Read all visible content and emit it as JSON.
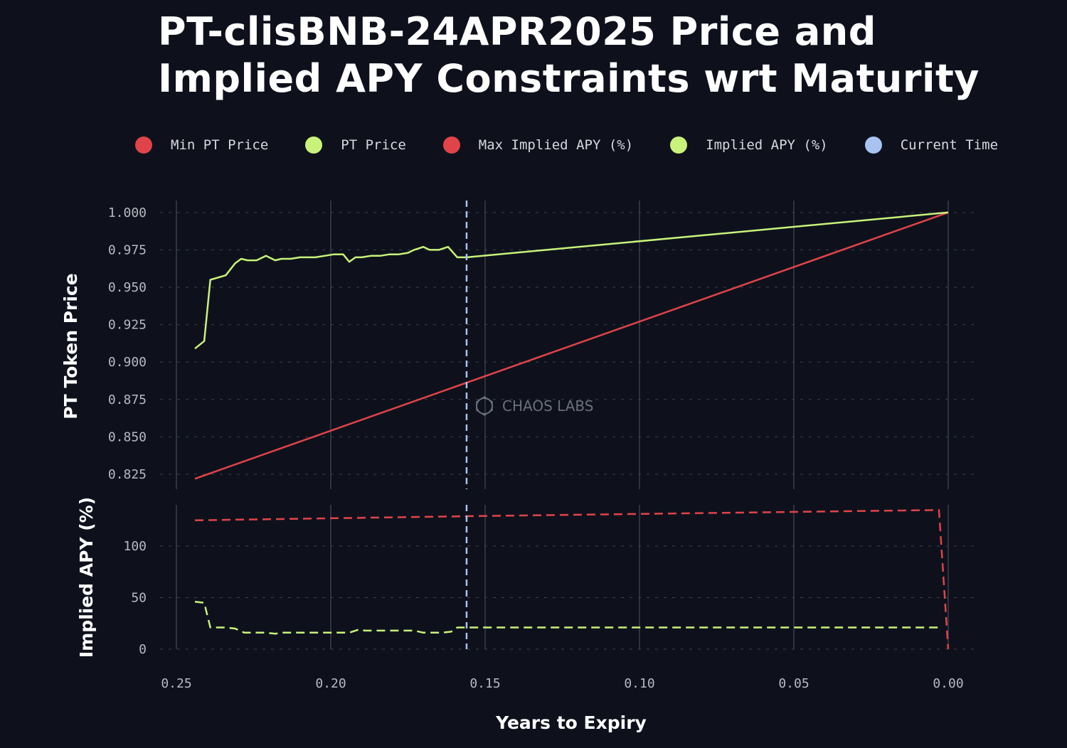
{
  "chart_data": [
    {
      "type": "line",
      "title": "PT-clisBNB-24APR2025 Price and Implied APY Constraints wrt Maturity",
      "xlabel": "Years to Expiry",
      "ylabel": "PT Token Price",
      "xlim": [
        0.25,
        0.0
      ],
      "ylim": [
        0.815,
        1.008
      ],
      "x_ticks": [
        0.25,
        0.2,
        0.15,
        0.1,
        0.05,
        0.0
      ],
      "y_ticks": [
        0.825,
        0.85,
        0.875,
        0.9,
        0.925,
        0.95,
        0.975,
        1.0
      ],
      "x_tick_labels": [
        "0.25",
        "0.20",
        "0.15",
        "0.10",
        "0.05",
        "0.00"
      ],
      "y_tick_labels": [
        "0.825",
        "0.850",
        "0.875",
        "0.900",
        "0.925",
        "0.950",
        "0.975",
        "1.000"
      ],
      "current_time": 0.156,
      "series": [
        {
          "name": "Min PT Price",
          "color": "#e0444a",
          "style": "solid",
          "x": [
            0.244,
            0.0
          ],
          "y": [
            0.822,
            1.0
          ]
        },
        {
          "name": "PT Price",
          "color": "#c9f27a",
          "style": "solid",
          "x": [
            0.244,
            0.241,
            0.239,
            0.234,
            0.231,
            0.229,
            0.227,
            0.224,
            0.221,
            0.218,
            0.216,
            0.213,
            0.21,
            0.207,
            0.205,
            0.202,
            0.199,
            0.196,
            0.194,
            0.192,
            0.19,
            0.187,
            0.184,
            0.181,
            0.178,
            0.175,
            0.173,
            0.17,
            0.168,
            0.165,
            0.162,
            0.159,
            0.156,
            0.0
          ],
          "y": [
            0.909,
            0.914,
            0.955,
            0.958,
            0.966,
            0.969,
            0.968,
            0.968,
            0.971,
            0.968,
            0.969,
            0.969,
            0.97,
            0.97,
            0.97,
            0.971,
            0.972,
            0.972,
            0.967,
            0.97,
            0.97,
            0.971,
            0.971,
            0.972,
            0.972,
            0.973,
            0.975,
            0.977,
            0.975,
            0.975,
            0.977,
            0.97,
            0.97,
            1.0
          ]
        }
      ]
    },
    {
      "type": "line",
      "ylabel": "Implied APY (%)",
      "xlim": [
        0.25,
        0.0
      ],
      "ylim": [
        -6,
        148
      ],
      "y_ticks": [
        0,
        50,
        100
      ],
      "y_tick_labels": [
        "0",
        "50",
        "100"
      ],
      "series": [
        {
          "name": "Max Implied APY (%)",
          "color": "#e0444a",
          "style": "dashed",
          "x": [
            0.244,
            0.156,
            0.003,
            0.0
          ],
          "y": [
            125,
            129,
            135,
            0
          ]
        },
        {
          "name": "Implied APY (%)",
          "color": "#c9f27a",
          "style": "dashed",
          "x": [
            0.244,
            0.241,
            0.239,
            0.234,
            0.231,
            0.228,
            0.225,
            0.221,
            0.218,
            0.216,
            0.212,
            0.208,
            0.205,
            0.201,
            0.198,
            0.194,
            0.191,
            0.189,
            0.186,
            0.183,
            0.18,
            0.176,
            0.173,
            0.17,
            0.167,
            0.164,
            0.161,
            0.159,
            0.156,
            0.003
          ],
          "y": [
            46,
            45,
            21,
            21,
            20,
            16,
            16,
            16,
            15,
            16,
            16,
            16,
            16,
            16,
            16,
            16,
            19,
            18,
            18,
            18,
            18,
            18,
            18,
            16,
            16,
            16,
            17,
            21,
            21,
            21
          ]
        }
      ]
    }
  ],
  "legend": [
    {
      "label": "Min PT Price",
      "color": "#e0444a"
    },
    {
      "label": "PT Price",
      "color": "#c9f27a"
    },
    {
      "label": "Max Implied APY (%)",
      "color": "#e0444a"
    },
    {
      "label": "Implied APY (%)",
      "color": "#c9f27a"
    },
    {
      "label": "Current Time",
      "color": "#a9c3f0"
    }
  ],
  "watermark": "CHAOS LABS"
}
